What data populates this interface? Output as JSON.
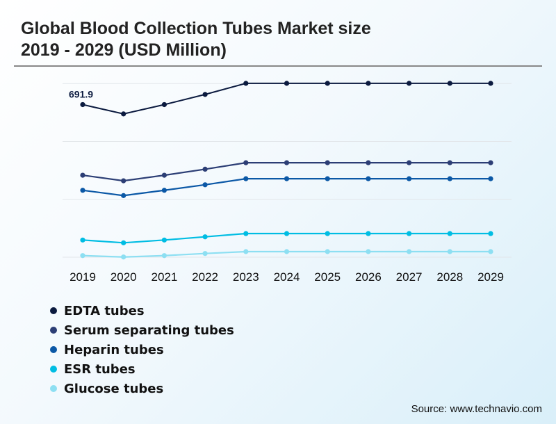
{
  "title_line1": "Global Blood Collection Tubes Market size",
  "title_line2": "2019 - 2029 (USD Million)",
  "source": "Source: www.technavio.com",
  "chart_data": {
    "type": "line",
    "title": "Global Blood Collection Tubes Market size 2019 - 2029 (USD Million)",
    "x": [
      "2019",
      "2020",
      "2021",
      "2022",
      "2023",
      "2024",
      "2025",
      "2026",
      "2027",
      "2028",
      "2029"
    ],
    "ylim": [
      0,
      787
    ],
    "grid": true,
    "legend_position": "bottom",
    "annotations": [
      {
        "series": "EDTA tubes",
        "x": "2019",
        "text": "691.9"
      }
    ],
    "series": [
      {
        "name": "EDTA tubes",
        "color": "#0b1a3f",
        "values": [
          691.9,
          649.7,
          691.9,
          737.9,
          788.3,
          788.3,
          788.3,
          788.3,
          788.3,
          788.3,
          788.3
        ]
      },
      {
        "name": "Serum separating tubes",
        "color": "#2c3e75",
        "values": [
          371.6,
          346.4,
          371.6,
          399.0,
          428.3,
          428.3,
          428.3,
          428.3,
          428.3,
          428.3,
          428.3
        ]
      },
      {
        "name": "Heparin tubes",
        "color": "#0b58a6",
        "values": [
          303.3,
          279.3,
          303.3,
          328.4,
          355.8,
          355.8,
          355.8,
          355.8,
          355.8,
          355.8,
          355.8
        ]
      },
      {
        "name": "ESR tubes",
        "color": "#00bde3",
        "values": [
          77.8,
          65.2,
          77.8,
          92.3,
          107.1,
          107.1,
          107.1,
          107.1,
          107.1,
          107.1,
          107.1
        ]
      },
      {
        "name": "Glucose tubes",
        "color": "#8ddff2",
        "values": [
          7.2,
          0.9,
          7.2,
          16.7,
          25.2,
          25.2,
          25.2,
          25.2,
          25.2,
          25.2,
          25.2
        ]
      }
    ]
  }
}
